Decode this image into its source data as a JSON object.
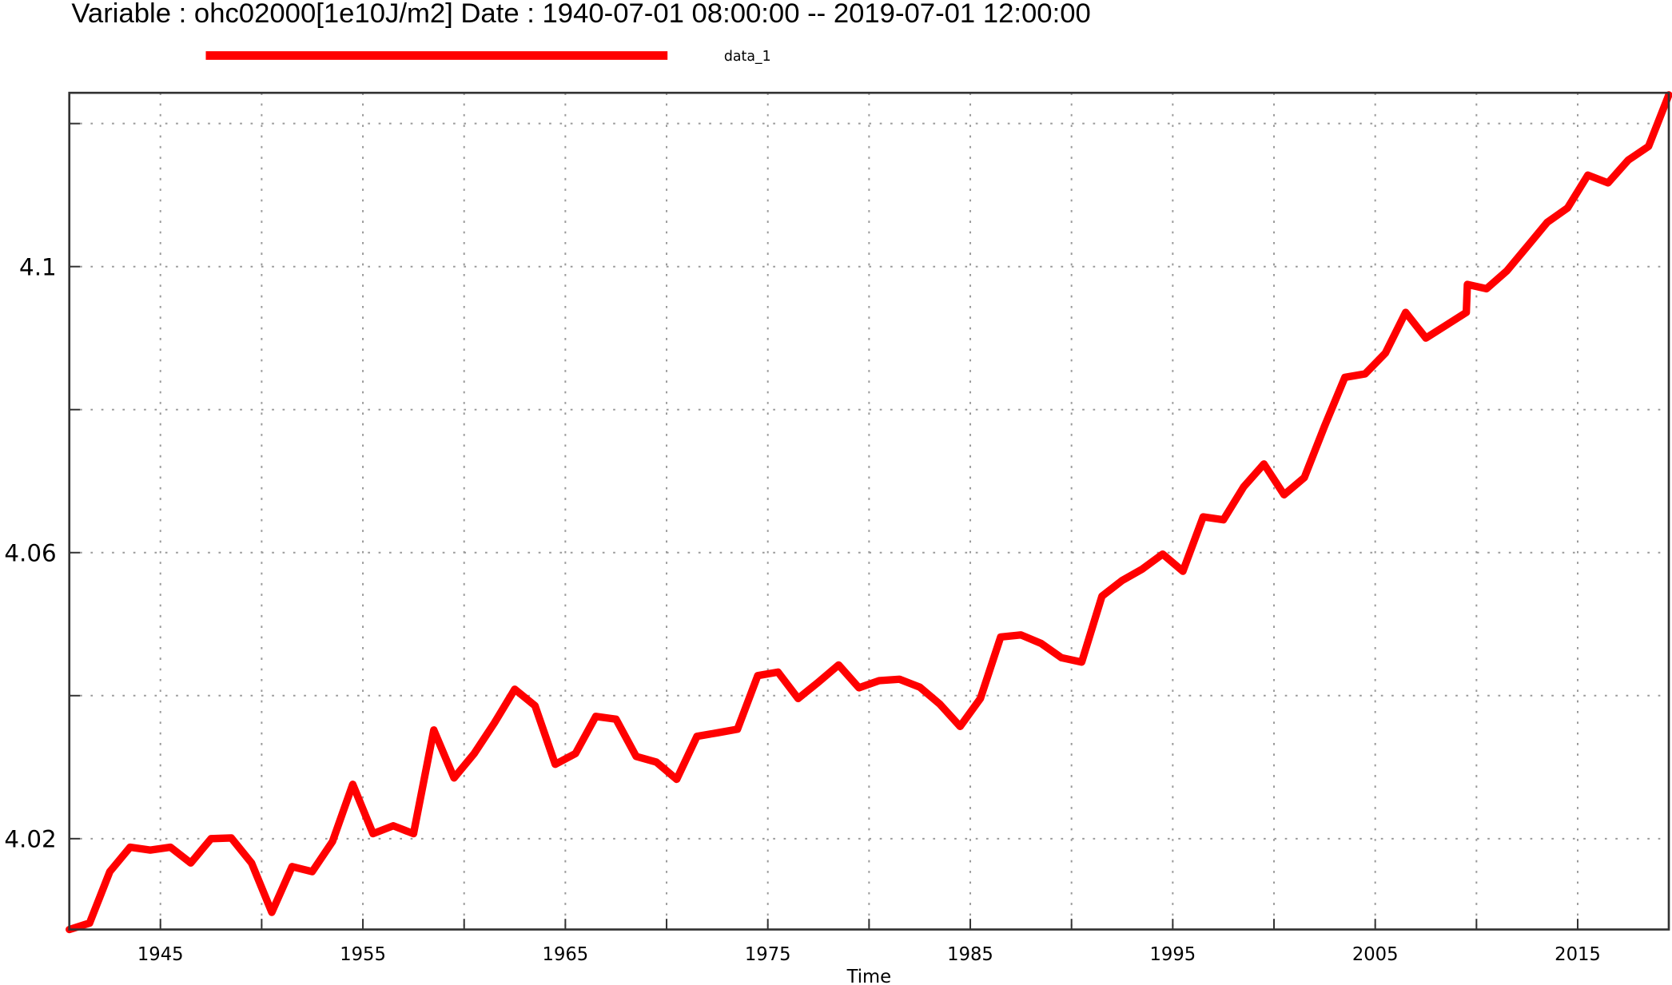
{
  "chart_data": {
    "type": "line",
    "title": "Variable : ohc02000[1e10J/m2]  Date :  1940-07-01 08:00:00 -- 2019-07-01 12:00:00",
    "xlabel": "Time",
    "ylabel": "",
    "xlim": [
      1940.5,
      2019.5
    ],
    "ylim": [
      4.0073,
      4.1243
    ],
    "grid": true,
    "legend_placement": "top",
    "x_ticks": [
      1945,
      1950,
      1955,
      1960,
      1965,
      1970,
      1975,
      1980,
      1985,
      1990,
      1995,
      2000,
      2005,
      2010,
      2015
    ],
    "x_tick_labels": [
      "1945",
      "",
      "1955",
      "",
      "1965",
      "",
      "1975",
      "",
      "1985",
      "",
      "1995",
      "",
      "2005",
      "",
      "2015"
    ],
    "y_ticks": [
      4.02,
      4.04,
      4.06,
      4.08,
      4.1,
      4.12
    ],
    "y_tick_labels": [
      "4.02",
      "",
      "4.06",
      "",
      "4.1",
      ""
    ],
    "series": [
      {
        "name": "data_1",
        "color": "#ff0000",
        "x": [
          1940.5,
          1941.5,
          1942.5,
          1943.5,
          1944.5,
          1945.5,
          1946.5,
          1947.5,
          1948.5,
          1949.5,
          1950.5,
          1951.5,
          1952.5,
          1953.5,
          1954.5,
          1955.5,
          1956.5,
          1957.5,
          1958.5,
          1959.5,
          1960.5,
          1961.5,
          1962.5,
          1963.5,
          1964.5,
          1965.5,
          1966.5,
          1967.5,
          1968.5,
          1969.5,
          1970.5,
          1971.5,
          1972.5,
          1973.5,
          1974.5,
          1975.5,
          1976.5,
          1977.5,
          1978.5,
          1979.5,
          1980.5,
          1981.5,
          1982.5,
          1983.5,
          1984.5,
          1985.5,
          1986.5,
          1987.5,
          1988.5,
          1989.5,
          1990.5,
          1991.5,
          1992.5,
          1993.5,
          1994.5,
          1995.5,
          1996.5,
          1997.5,
          1998.5,
          1999.5,
          2000.5,
          2001.5,
          2002.5,
          2003.5,
          2004.5,
          2005.5,
          2006.5,
          2007.5,
          2008.5,
          2009.5,
          2009.55,
          2010.5,
          2011.5,
          2012.5,
          2013.5,
          2014.5,
          2015.5,
          2016.5,
          2017.5,
          2018.5,
          2019.5
        ],
        "y": [
          4.0073,
          4.0082,
          4.0154,
          4.0188,
          4.0184,
          4.0188,
          4.0166,
          4.02,
          4.0201,
          4.0166,
          4.0097,
          4.0161,
          4.0154,
          4.0196,
          4.0276,
          4.0207,
          4.0218,
          4.0207,
          4.0352,
          4.0285,
          4.0319,
          4.0362,
          4.0409,
          4.0386,
          4.0304,
          4.0319,
          4.0371,
          4.0367,
          4.0315,
          4.0307,
          4.0283,
          4.0343,
          4.0348,
          4.0353,
          4.0428,
          4.0433,
          4.0396,
          4.0419,
          4.0443,
          4.0411,
          4.0421,
          4.0423,
          4.0412,
          4.0388,
          4.0357,
          4.0396,
          4.0482,
          4.0485,
          4.0473,
          4.0453,
          4.0447,
          4.0539,
          4.0561,
          4.0577,
          4.0598,
          4.0574,
          4.065,
          4.0646,
          4.0692,
          4.0724,
          4.0681,
          4.0705,
          4.0777,
          4.0845,
          4.085,
          4.0879,
          4.0936,
          4.09,
          4.0918,
          4.0936,
          4.0975,
          4.0969,
          4.0994,
          4.1028,
          4.1062,
          4.1082,
          4.1128,
          4.1117,
          4.1149,
          4.1168,
          4.124
        ]
      }
    ]
  }
}
